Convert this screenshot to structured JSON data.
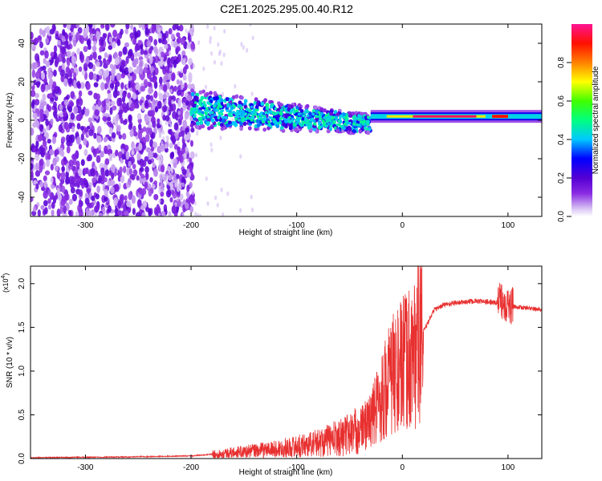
{
  "title": "C2E1.2025.295.00.40.R12",
  "chart_data": [
    {
      "type": "heatmap",
      "title": "C2E1.2025.295.00.40.R12",
      "xlabel": "Height of straight line (km)",
      "ylabel": "Frequency (Hz)",
      "xlim": [
        -352,
        132
      ],
      "ylim": [
        -50,
        50
      ],
      "xticks": [
        -300,
        -200,
        -100,
        0,
        100
      ],
      "xtick_labels": [
        "-300",
        "-200",
        "-100",
        "0",
        "100"
      ],
      "yticks": [
        -40,
        -20,
        0,
        20,
        40
      ],
      "ytick_labels": [
        "-40",
        "-20",
        "0",
        "20",
        "40"
      ],
      "colorbar": {
        "label": "Normalized spectral amplitude",
        "range": [
          0,
          1
        ],
        "ticks": [
          0.0,
          0.2,
          0.4,
          0.6,
          0.8
        ],
        "tick_labels": [
          "0.0",
          "0.2",
          "0.4",
          "0.6",
          "0.8"
        ],
        "colors": [
          "#ffffff",
          "#d9c4f4",
          "#8a2be2",
          "#5500d4",
          "#0000ff",
          "#00ffff",
          "#00ff00",
          "#ffff00",
          "#ff7f00",
          "#ff0000",
          "#ff1493"
        ]
      },
      "features": [
        {
          "name": "noise",
          "x_range": [
            -352,
            -198
          ],
          "y_range": [
            -50,
            50
          ],
          "level": 0.12
        },
        {
          "name": "scatter-fringe",
          "x_range": [
            -230,
            -140
          ],
          "y_range": [
            -50,
            50
          ],
          "level": 0.04
        },
        {
          "name": "turbulent-signal",
          "x_range": [
            -200,
            -30
          ],
          "center_y_start": 6,
          "center_y_end": -2,
          "level": 0.5
        },
        {
          "name": "steady-tone",
          "x_range": [
            -30,
            132
          ],
          "center_y": 2,
          "level": 0.95
        }
      ]
    },
    {
      "type": "line",
      "xlabel": "Height of straight line (km)",
      "ylabel": "SNR (10 * v/v)",
      "scale_label": "(x10",
      "scale_exponent": "4",
      "scale_close": ")",
      "xlim": [
        -352,
        132
      ],
      "ylim": [
        0,
        2.2
      ],
      "xticks": [
        -300,
        -200,
        -100,
        0,
        100
      ],
      "xtick_labels": [
        "-300",
        "-200",
        "-100",
        "0",
        "100"
      ],
      "yticks": [
        0.0,
        0.5,
        1.0,
        1.5,
        2.0
      ],
      "ytick_labels": [
        "0.0",
        "0.5",
        "1.0",
        "1.5",
        "2.0"
      ],
      "color": "#e83030",
      "series": [
        {
          "name": "SNR",
          "x": [
            -352,
            -300,
            -250,
            -200,
            -180,
            -160,
            -140,
            -120,
            -100,
            -80,
            -60,
            -40,
            -30,
            -20,
            -10,
            0,
            10,
            20,
            30,
            40,
            50,
            60,
            70,
            80,
            90,
            95,
            100,
            105,
            110,
            120,
            132
          ],
          "y": [
            0.01,
            0.015,
            0.02,
            0.03,
            0.05,
            0.07,
            0.09,
            0.11,
            0.14,
            0.18,
            0.24,
            0.33,
            0.45,
            0.7,
            0.95,
            1.05,
            1.2,
            1.45,
            1.7,
            1.76,
            1.78,
            1.79,
            1.8,
            1.79,
            1.78,
            1.82,
            1.75,
            1.74,
            1.73,
            1.72,
            1.7
          ]
        }
      ]
    }
  ]
}
